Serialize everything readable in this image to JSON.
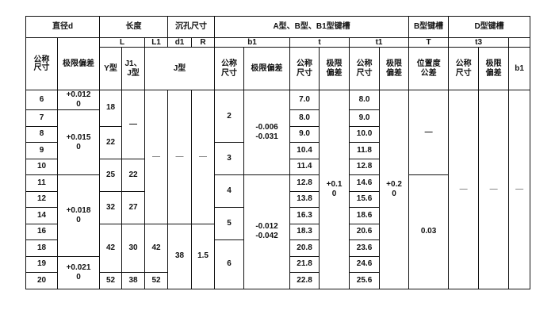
{
  "header": {
    "row1": {
      "diameter": "直径d",
      "length": "长度",
      "counterbore": "沉孔尺寸",
      "keyway_a_b_b1": "A型、B型、B1型键槽",
      "keyway_b": "B型键槽",
      "keyway_d": "D型键槽"
    },
    "row2": {
      "L": "L",
      "L1": "L1",
      "d1": "d1",
      "R": "R",
      "b1": "b1",
      "t": "t",
      "t1": "t1",
      "T": "T",
      "t3": "t3",
      "blank": ""
    },
    "row3": {
      "d_nominal": "公称\n尺寸",
      "d_tolerance": "极限偏差",
      "y_type": "Y型",
      "j1_j_type": "J1、J型",
      "j_type": "J型",
      "b1_nominal": "公称\n尺寸",
      "b1_tolerance": "极限偏差",
      "t_nominal": "公称\n尺寸",
      "t_tolerance": "极限\n偏差",
      "t1_nominal": "公称\n尺寸",
      "t1_tolerance": "极限\n偏差",
      "position_tolerance": "位置度\n公差",
      "t3_nominal": "公称\n尺寸",
      "t3_tolerance": "极限\n偏差",
      "b1": "b1"
    }
  },
  "columns": {
    "d_nominal": [
      "6",
      "7",
      "8",
      "9",
      "10",
      "11",
      "12",
      "14",
      "16",
      "18",
      "19",
      "20"
    ],
    "d_tolerance": [
      "+0.012\n0",
      "+0.015\n0",
      "+0.018\n0",
      "+0.021\n0"
    ],
    "y_type": [
      "18",
      "22",
      "25",
      "32",
      "42",
      "52"
    ],
    "j1_j_type": [
      "—",
      "22",
      "27",
      "30",
      "38"
    ],
    "L1": [
      "—",
      "42",
      "52"
    ],
    "d1": [
      "—",
      "38"
    ],
    "R": [
      "—",
      "1.5"
    ],
    "b1_nominal": [
      "2",
      "3",
      "4",
      "5",
      "6"
    ],
    "b1_tolerance": [
      "-0.006\n-0.031",
      "-0.012\n-0.042"
    ],
    "t_nominal": [
      "7.0",
      "8.0",
      "9.0",
      "10.4",
      "11.4",
      "12.8",
      "13.8",
      "16.3",
      "18.3",
      "20.8",
      "21.8",
      "22.8"
    ],
    "t_tolerance": [
      "+0.1\n0"
    ],
    "t1_nominal": [
      "8.0",
      "9.0",
      "10.0",
      "11.8",
      "12.8",
      "14.6",
      "15.6",
      "18.6",
      "20.6",
      "23.6",
      "24.6",
      "25.6"
    ],
    "t1_tolerance": [
      "+0.2\n0"
    ],
    "position_tolerance": [
      "—",
      "0.03"
    ],
    "t3_nominal": [
      "—"
    ],
    "t3_tolerance": [
      "—"
    ],
    "b1": [
      "—"
    ]
  }
}
